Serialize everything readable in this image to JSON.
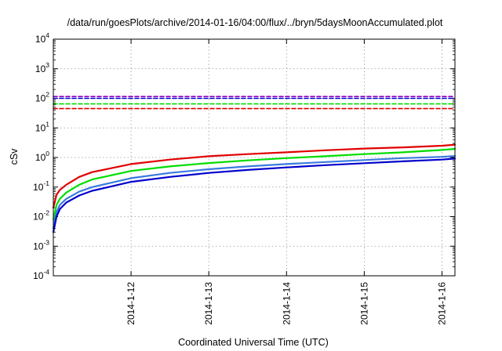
{
  "chart_data": {
    "type": "line",
    "title": "/data/run/goesPlots/archive/2014-01-16/04:00/flux/../bryn/5daysMoonAccumulated.plot",
    "xlabel": "Coordinated Universal Time (UTC)",
    "ylabel": "cSv",
    "yscale": "log",
    "ylim": [
      0.0001,
      10000
    ],
    "y_ticks": [
      {
        "base": "10",
        "exp": "-4",
        "value": 0.0001
      },
      {
        "base": "10",
        "exp": "-3",
        "value": 0.001
      },
      {
        "base": "10",
        "exp": "-2",
        "value": 0.01
      },
      {
        "base": "10",
        "exp": "-1",
        "value": 0.1
      },
      {
        "base": "10",
        "exp": "0",
        "value": 1
      },
      {
        "base": "10",
        "exp": "1",
        "value": 10
      },
      {
        "base": "10",
        "exp": "2",
        "value": 100
      },
      {
        "base": "10",
        "exp": "3",
        "value": 1000
      },
      {
        "base": "10",
        "exp": "4",
        "value": 10000
      }
    ],
    "xlim": [
      "2014-01-11 00:00",
      "2014-01-16 04:00"
    ],
    "x_ticks": [
      "2014-1-12",
      "2014-1-13",
      "2014-1-14",
      "2014-1-15",
      "2014-1-16"
    ],
    "grid": true,
    "legend": "none",
    "series": [
      {
        "color": "#e00000",
        "style": "solid",
        "x": [
          "2014-01-11 00:00",
          "2014-01-11 01:00",
          "2014-01-11 02:00",
          "2014-01-11 04:00",
          "2014-01-11 08:00",
          "2014-01-11 12:00",
          "2014-01-12 00:00",
          "2014-01-12 12:00",
          "2014-01-13 00:00",
          "2014-01-13 12:00",
          "2014-01-14 00:00",
          "2014-01-14 12:00",
          "2014-01-15 00:00",
          "2014-01-15 12:00",
          "2014-01-16 00:00",
          "2014-01-16 04:00"
        ],
        "y": [
          0.02,
          0.055,
          0.08,
          0.12,
          0.22,
          0.32,
          0.6,
          0.85,
          1.1,
          1.3,
          1.5,
          1.75,
          2.0,
          2.2,
          2.5,
          2.7
        ]
      },
      {
        "color": "#00dd00",
        "style": "solid",
        "x": [
          "2014-01-11 00:00",
          "2014-01-11 01:00",
          "2014-01-11 02:00",
          "2014-01-11 04:00",
          "2014-01-11 08:00",
          "2014-01-11 12:00",
          "2014-01-12 00:00",
          "2014-01-12 12:00",
          "2014-01-13 00:00",
          "2014-01-13 12:00",
          "2014-01-14 00:00",
          "2014-01-14 12:00",
          "2014-01-15 00:00",
          "2014-01-15 12:00",
          "2014-01-16 00:00",
          "2014-01-16 04:00"
        ],
        "y": [
          0.008,
          0.025,
          0.04,
          0.065,
          0.12,
          0.18,
          0.35,
          0.5,
          0.65,
          0.8,
          0.95,
          1.1,
          1.3,
          1.5,
          1.8,
          1.95
        ]
      },
      {
        "color": "#3a7be0",
        "style": "solid",
        "x": [
          "2014-01-11 00:00",
          "2014-01-11 01:00",
          "2014-01-11 02:00",
          "2014-01-11 04:00",
          "2014-01-11 08:00",
          "2014-01-11 12:00",
          "2014-01-12 00:00",
          "2014-01-12 12:00",
          "2014-01-13 00:00",
          "2014-01-13 12:00",
          "2014-01-14 00:00",
          "2014-01-14 12:00",
          "2014-01-15 00:00",
          "2014-01-15 12:00",
          "2014-01-16 00:00",
          "2014-01-16 04:00"
        ],
        "y": [
          0.004,
          0.014,
          0.025,
          0.04,
          0.07,
          0.1,
          0.2,
          0.3,
          0.4,
          0.5,
          0.6,
          0.7,
          0.82,
          0.95,
          1.05,
          1.12
        ]
      },
      {
        "color": "#0000cc",
        "style": "solid",
        "x": [
          "2014-01-11 00:00",
          "2014-01-11 01:00",
          "2014-01-11 02:00",
          "2014-01-11 04:00",
          "2014-01-11 08:00",
          "2014-01-11 12:00",
          "2014-01-12 00:00",
          "2014-01-12 12:00",
          "2014-01-13 00:00",
          "2014-01-13 12:00",
          "2014-01-14 00:00",
          "2014-01-14 12:00",
          "2014-01-15 00:00",
          "2014-01-15 12:00",
          "2014-01-16 00:00",
          "2014-01-16 04:00"
        ],
        "y": [
          0.003,
          0.01,
          0.018,
          0.03,
          0.052,
          0.075,
          0.15,
          0.22,
          0.3,
          0.38,
          0.46,
          0.55,
          0.64,
          0.74,
          0.85,
          0.92
        ]
      },
      {
        "color": "#9000c0",
        "style": "dashed",
        "x": [
          "2014-01-11 00:00",
          "2014-01-16 04:00"
        ],
        "y": [
          115,
          115
        ]
      },
      {
        "color": "#0000cc",
        "style": "dashed",
        "x": [
          "2014-01-11 00:00",
          "2014-01-16 04:00"
        ],
        "y": [
          100,
          100
        ]
      },
      {
        "color": "#00dd00",
        "style": "dashed",
        "x": [
          "2014-01-11 00:00",
          "2014-01-16 04:00"
        ],
        "y": [
          65,
          65
        ]
      },
      {
        "color": "#e00000",
        "style": "dashed",
        "x": [
          "2014-01-11 00:00",
          "2014-01-16 04:00"
        ],
        "y": [
          45,
          45
        ]
      }
    ]
  }
}
